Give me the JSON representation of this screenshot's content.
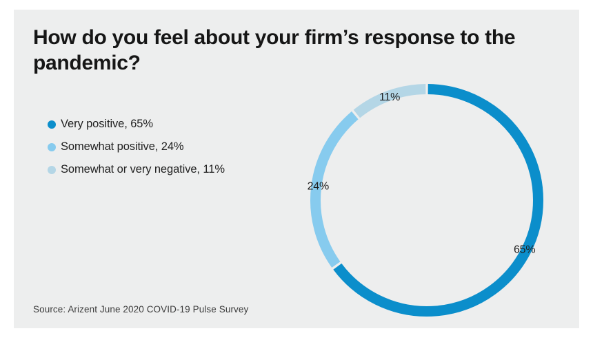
{
  "page": {
    "background": "#ffffff",
    "card_background": "#edeeee"
  },
  "header": {
    "title": "How do you feel about your firm’s response to the pandemic?"
  },
  "legend": {
    "items": [
      {
        "label": "Very positive, 65%",
        "color": "#0b8ecb"
      },
      {
        "label": "Somewhat positive, 24%",
        "color": "#87cbee"
      },
      {
        "label": "Somewhat or very negative, 11%",
        "color": "#b4d6e6"
      }
    ]
  },
  "chart_data": {
    "type": "pie",
    "subtype": "donut",
    "title": "How do you feel about your firm’s response to the pandemic?",
    "categories": [
      "Very positive",
      "Somewhat positive",
      "Somewhat or very negative"
    ],
    "values": [
      65,
      24,
      11
    ],
    "slice_labels": [
      "65%",
      "24%",
      "11%"
    ],
    "colors": [
      "#0b8ecb",
      "#87cbee",
      "#b4d6e6"
    ],
    "start_angle_deg": 0,
    "direction": "clockwise",
    "gap_between_slices": true,
    "legend_position": "left",
    "label_placement": "on-ring"
  },
  "footer": {
    "source_note": "Source: Arizent June 2020 COVID-19 Pulse Survey"
  }
}
